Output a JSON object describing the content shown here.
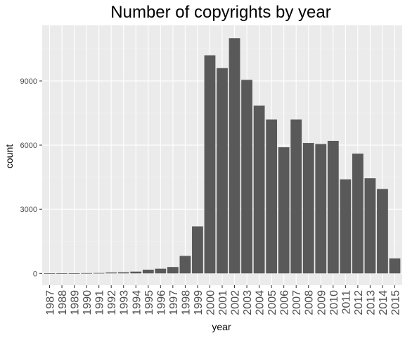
{
  "chart_data": {
    "type": "bar",
    "title": "Number of copyrights by year",
    "xlabel": "year",
    "ylabel": "count",
    "categories": [
      "1987",
      "1988",
      "1989",
      "1990",
      "1991",
      "1992",
      "1993",
      "1994",
      "1995",
      "1996",
      "1997",
      "1998",
      "1999",
      "2000",
      "2001",
      "2002",
      "2003",
      "2004",
      "2005",
      "2006",
      "2007",
      "2008",
      "2009",
      "2010",
      "2011",
      "2012",
      "2013",
      "2014",
      "2015"
    ],
    "values": [
      5,
      10,
      10,
      15,
      20,
      45,
      55,
      85,
      175,
      220,
      300,
      820,
      2200,
      10200,
      9600,
      11000,
      9050,
      7850,
      7200,
      5900,
      7200,
      6100,
      6050,
      6200,
      4400,
      5600,
      4450,
      3950,
      700
    ],
    "yticks": [
      0,
      3000,
      6000,
      9000
    ],
    "ytick_labels": [
      "0",
      "3000",
      "6000",
      "9000"
    ],
    "ylim": [
      -550,
      11600
    ],
    "grid": true,
    "colors": {
      "bar": "#595959",
      "panel": "#ebebeb",
      "grid_major": "#ffffff",
      "grid_minor": "#f5f5f5",
      "tick_text": "#4d4d4d"
    }
  }
}
